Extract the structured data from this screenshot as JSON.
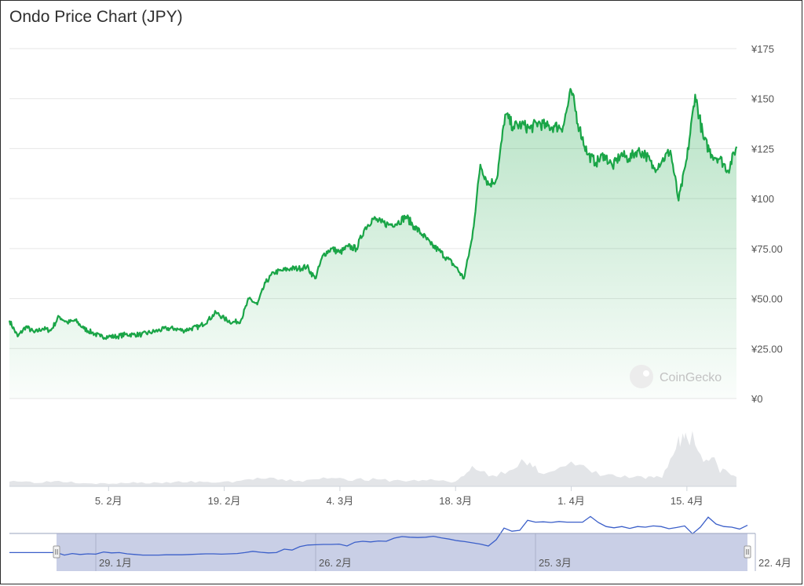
{
  "chart_title": "Ondo Price Chart (JPY)",
  "watermark": "CoinGecko",
  "chart_data": {
    "type": "area",
    "title": "Ondo Price Chart (JPY)",
    "xlabel": "",
    "ylabel": "",
    "currency": "¥",
    "ylim": [
      0,
      175
    ],
    "y_ticks": [
      "¥0",
      "¥25.00",
      "¥50.00",
      "¥75.00",
      "¥100",
      "¥125",
      "¥150",
      "¥175"
    ],
    "y_tick_values": [
      0,
      25,
      50,
      75,
      100,
      125,
      150,
      175
    ],
    "x_range": [
      "2024-01-24",
      "2024-04-21"
    ],
    "x_ticks": [
      {
        "label": "5. 2月",
        "date": "2024-02-05"
      },
      {
        "label": "19. 2月",
        "date": "2024-02-19"
      },
      {
        "label": "4. 3月",
        "date": "2024-03-04"
      },
      {
        "label": "18. 3月",
        "date": "2024-03-18"
      },
      {
        "label": "1. 4月",
        "date": "2024-04-01"
      },
      {
        "label": "15. 4月",
        "date": "2024-04-15"
      }
    ],
    "series": [
      {
        "color": "#1aa547",
        "points": [
          [
            "2024-01-24",
            39
          ],
          [
            "2024-01-25",
            31
          ],
          [
            "2024-01-26",
            36
          ],
          [
            "2024-01-27",
            33
          ],
          [
            "2024-01-28",
            35
          ],
          [
            "2024-01-29",
            34
          ],
          [
            "2024-01-30",
            41
          ],
          [
            "2024-01-31",
            38
          ],
          [
            "2024-02-01",
            39
          ],
          [
            "2024-02-02",
            35
          ],
          [
            "2024-02-03",
            33
          ],
          [
            "2024-02-04",
            31
          ],
          [
            "2024-02-05",
            31
          ],
          [
            "2024-02-06",
            31
          ],
          [
            "2024-02-07",
            32
          ],
          [
            "2024-02-08",
            32
          ],
          [
            "2024-02-09",
            32
          ],
          [
            "2024-02-10",
            33
          ],
          [
            "2024-02-11",
            34
          ],
          [
            "2024-02-12",
            35
          ],
          [
            "2024-02-13",
            35
          ],
          [
            "2024-02-14",
            34
          ],
          [
            "2024-02-15",
            35
          ],
          [
            "2024-02-16",
            36
          ],
          [
            "2024-02-17",
            39
          ],
          [
            "2024-02-18",
            43
          ],
          [
            "2024-02-19",
            40
          ],
          [
            "2024-02-20",
            38
          ],
          [
            "2024-02-21",
            39
          ],
          [
            "2024-02-22",
            50
          ],
          [
            "2024-02-23",
            47
          ],
          [
            "2024-02-24",
            58
          ],
          [
            "2024-02-25",
            63
          ],
          [
            "2024-02-26",
            64
          ],
          [
            "2024-02-27",
            65
          ],
          [
            "2024-02-28",
            65
          ],
          [
            "2024-02-29",
            66
          ],
          [
            "2024-03-01",
            60
          ],
          [
            "2024-03-02",
            72
          ],
          [
            "2024-03-03",
            75
          ],
          [
            "2024-03-04",
            73
          ],
          [
            "2024-03-05",
            76
          ],
          [
            "2024-03-06",
            75
          ],
          [
            "2024-03-07",
            85
          ],
          [
            "2024-03-08",
            90
          ],
          [
            "2024-03-09",
            88
          ],
          [
            "2024-03-10",
            87
          ],
          [
            "2024-03-11",
            88
          ],
          [
            "2024-03-12",
            91
          ],
          [
            "2024-03-13",
            86
          ],
          [
            "2024-03-14",
            82
          ],
          [
            "2024-03-15",
            77
          ],
          [
            "2024-03-16",
            74
          ],
          [
            "2024-03-17",
            70
          ],
          [
            "2024-03-18",
            66
          ],
          [
            "2024-03-19",
            60
          ],
          [
            "2024-03-20",
            80
          ],
          [
            "2024-03-21",
            117
          ],
          [
            "2024-03-22",
            107
          ],
          [
            "2024-03-23",
            110
          ],
          [
            "2024-03-24",
            142
          ],
          [
            "2024-03-25",
            136
          ],
          [
            "2024-03-26",
            137
          ],
          [
            "2024-03-27",
            135
          ],
          [
            "2024-03-28",
            138
          ],
          [
            "2024-03-29",
            136
          ],
          [
            "2024-03-30",
            136
          ],
          [
            "2024-03-31",
            136
          ],
          [
            "2024-04-01",
            154
          ],
          [
            "2024-04-02",
            135
          ],
          [
            "2024-04-03",
            122
          ],
          [
            "2024-04-04",
            118
          ],
          [
            "2024-04-05",
            122
          ],
          [
            "2024-04-06",
            116
          ],
          [
            "2024-04-07",
            122
          ],
          [
            "2024-04-08",
            120
          ],
          [
            "2024-04-09",
            124
          ],
          [
            "2024-04-10",
            122
          ],
          [
            "2024-04-11",
            115
          ],
          [
            "2024-04-12",
            119
          ],
          [
            "2024-04-13",
            124
          ],
          [
            "2024-04-14",
            99
          ],
          [
            "2024-04-15",
            120
          ],
          [
            "2024-04-16",
            152
          ],
          [
            "2024-04-17",
            130
          ],
          [
            "2024-04-18",
            122
          ],
          [
            "2024-04-19",
            120
          ],
          [
            "2024-04-20",
            114
          ],
          [
            "2024-04-21",
            126
          ]
        ]
      }
    ],
    "volume": [
      [
        "2024-01-24",
        8
      ],
      [
        "2024-01-27",
        5
      ],
      [
        "2024-01-30",
        7
      ],
      [
        "2024-02-02",
        5
      ],
      [
        "2024-02-05",
        3
      ],
      [
        "2024-02-08",
        5
      ],
      [
        "2024-02-11",
        4
      ],
      [
        "2024-02-14",
        6
      ],
      [
        "2024-02-17",
        5
      ],
      [
        "2024-02-20",
        6
      ],
      [
        "2024-02-23",
        10
      ],
      [
        "2024-02-26",
        8
      ],
      [
        "2024-02-29",
        7
      ],
      [
        "2024-03-03",
        12
      ],
      [
        "2024-03-06",
        9
      ],
      [
        "2024-03-09",
        8
      ],
      [
        "2024-03-12",
        7
      ],
      [
        "2024-03-15",
        8
      ],
      [
        "2024-03-18",
        6
      ],
      [
        "2024-03-20",
        22
      ],
      [
        "2024-03-23",
        14
      ],
      [
        "2024-03-26",
        30
      ],
      [
        "2024-03-28",
        18
      ],
      [
        "2024-04-01",
        28
      ],
      [
        "2024-04-04",
        16
      ],
      [
        "2024-04-07",
        12
      ],
      [
        "2024-04-10",
        10
      ],
      [
        "2024-04-12",
        13
      ],
      [
        "2024-04-14",
        55
      ],
      [
        "2024-04-15",
        72
      ],
      [
        "2024-04-17",
        40
      ],
      [
        "2024-04-19",
        22
      ],
      [
        "2024-04-21",
        12
      ]
    ],
    "navigator": {
      "x_range": [
        "2024-01-18",
        "2024-04-22"
      ],
      "selected_range": [
        "2024-01-24",
        "2024-04-21"
      ],
      "x_ticks": [
        {
          "label": "29. 1月",
          "date": "2024-01-29"
        },
        {
          "label": "26. 2月",
          "date": "2024-02-26"
        },
        {
          "label": "25. 3月",
          "date": "2024-03-25"
        },
        {
          "label": "22. 4月",
          "date": "2024-04-22"
        }
      ]
    }
  }
}
